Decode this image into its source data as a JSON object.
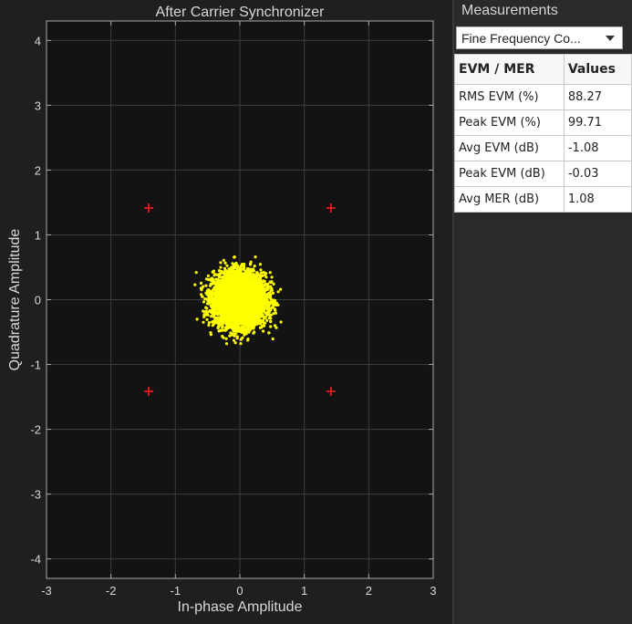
{
  "plot": {
    "title": "After Carrier Synchronizer"
  },
  "colors": {
    "background": "#1f1f1f",
    "axes_background": "#131313",
    "grid": "#3c3c3c",
    "text": "#d8d8d8",
    "received_points": "#ffff00",
    "reference_points": "#ff1a1a"
  },
  "chart_data": {
    "type": "scatter",
    "title": "After Carrier Synchronizer",
    "xlabel": "In-phase Amplitude",
    "ylabel": "Quadrature Amplitude",
    "xlim": [
      -3,
      3
    ],
    "ylim": [
      -4.3,
      4.3
    ],
    "xticks": [
      -3,
      -2,
      -1,
      0,
      1,
      2,
      3
    ],
    "yticks": [
      -4,
      -3,
      -2,
      -1,
      0,
      1,
      2,
      3,
      4
    ],
    "grid": true,
    "series": [
      {
        "marker": "+",
        "color": "#ff1a1a",
        "points": [
          [
            -1.414,
            1.414
          ],
          [
            1.414,
            1.414
          ],
          [
            -1.414,
            -1.414
          ],
          [
            1.414,
            -1.414
          ]
        ]
      },
      {
        "marker": "dot",
        "color": "#ffff00",
        "cluster": {
          "center": [
            0.0,
            0.0
          ],
          "x_spread": 0.2,
          "y_spread": 0.2,
          "x_range": [
            -0.75,
            0.65
          ],
          "y_range": [
            -0.78,
            0.7
          ],
          "count": 5000
        }
      }
    ]
  },
  "measurements": {
    "title": "Measurements",
    "dropdown_value": "Fine Frequency Co...",
    "table": {
      "headers": [
        "EVM / MER",
        "Values"
      ],
      "rows": [
        [
          "RMS EVM (%)",
          "88.27"
        ],
        [
          "Peak EVM (%)",
          "99.71"
        ],
        [
          "Avg EVM (dB)",
          "-1.08"
        ],
        [
          "Peak EVM (dB)",
          "-0.03"
        ],
        [
          "Avg MER (dB)",
          "1.08"
        ]
      ]
    }
  }
}
